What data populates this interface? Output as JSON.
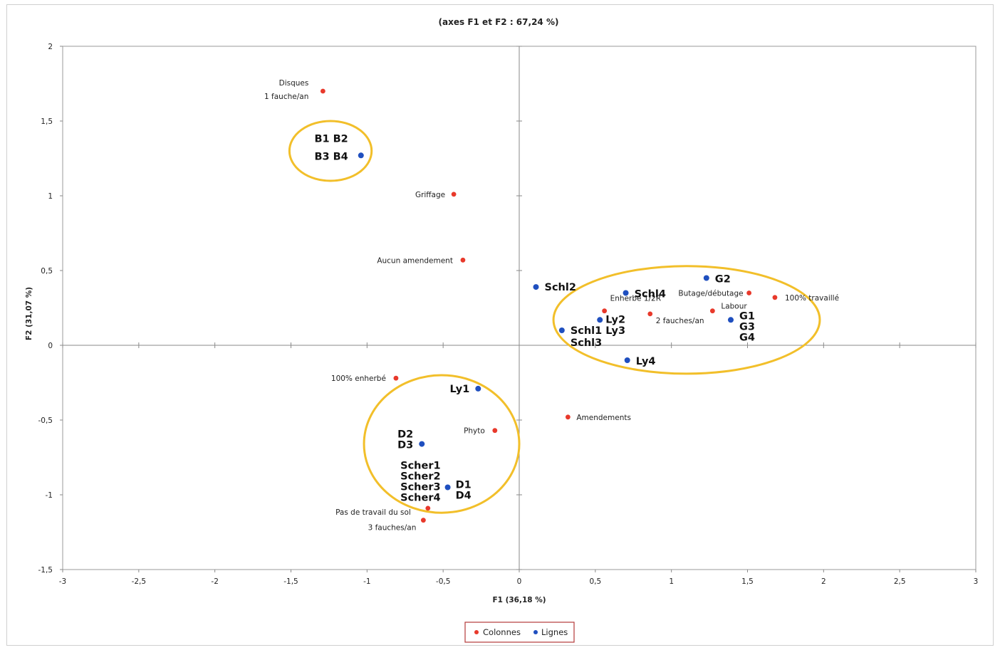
{
  "chart_data": {
    "type": "scatter",
    "title": "(axes F1 et F2 : 67,24 %)",
    "xlabel": "F1 (36,18 %)",
    "ylabel": "F2 (31,07 %)",
    "xlim": [
      -3,
      3
    ],
    "ylim": [
      -1.5,
      2
    ],
    "x_ticks": [
      "-3",
      "-2,5",
      "-2",
      "-1,5",
      "-1",
      "-0,5",
      "0",
      "0,5",
      "1",
      "1,5",
      "2",
      "2,5",
      "3"
    ],
    "y_ticks": [
      "-1,5",
      "-1",
      "-0,5",
      "0",
      "0,5",
      "1",
      "1,5",
      "2"
    ],
    "grid": false,
    "legend_position": "bottom",
    "series": [
      {
        "name": "Colonnes",
        "color": "#e8392b",
        "points": [
          {
            "x": -1.29,
            "y": 1.7,
            "lines": [
              "Disques",
              "1 fauche/an"
            ]
          },
          {
            "x": -0.43,
            "y": 1.01,
            "lines": [
              "Griffage"
            ]
          },
          {
            "x": -0.37,
            "y": 0.57,
            "lines": [
              "Aucun amendement"
            ]
          },
          {
            "x": -0.81,
            "y": -0.22,
            "lines": [
              "100% enherbé"
            ]
          },
          {
            "x": -0.16,
            "y": -0.57,
            "lines": [
              "Phyto"
            ]
          },
          {
            "x": 0.32,
            "y": -0.48,
            "lines": [
              "Amendements"
            ]
          },
          {
            "x": -0.6,
            "y": -1.09,
            "lines": [
              "Pas de travail du sol"
            ]
          },
          {
            "x": -0.63,
            "y": -1.17,
            "lines": [
              "3 fauches/an"
            ]
          },
          {
            "x": 0.56,
            "y": 0.23,
            "lines": [
              "Enherbé 1/2R"
            ]
          },
          {
            "x": 0.86,
            "y": 0.21,
            "lines": [
              "2 fauches/an"
            ]
          },
          {
            "x": 1.27,
            "y": 0.23,
            "lines": [
              "Labour"
            ]
          },
          {
            "x": 1.51,
            "y": 0.35,
            "lines": [
              "Butage/débutage"
            ]
          },
          {
            "x": 1.68,
            "y": 0.32,
            "lines": [
              "100% travaillé"
            ]
          }
        ]
      },
      {
        "name": "Lignes",
        "color": "#1f4fbf",
        "points": [
          {
            "x": -1.04,
            "y": 1.27,
            "lines": [
              "B1  B2",
              "B3  B4"
            ]
          },
          {
            "x": 0.11,
            "y": 0.39,
            "lines": [
              "Schl2"
            ]
          },
          {
            "x": 0.7,
            "y": 0.35,
            "lines": [
              "Schl4"
            ]
          },
          {
            "x": 1.23,
            "y": 0.45,
            "lines": [
              "G2"
            ]
          },
          {
            "x": 0.53,
            "y": 0.17,
            "lines": [
              "Ly2"
            ]
          },
          {
            "x": 0.28,
            "y": 0.1,
            "lines": [
              "Schl1 Ly3",
              "Schl3"
            ]
          },
          {
            "x": 1.39,
            "y": 0.17,
            "lines": [
              "G1",
              "G3",
              "G4"
            ]
          },
          {
            "x": 0.71,
            "y": -0.1,
            "lines": [
              "Ly4"
            ]
          },
          {
            "x": -0.27,
            "y": -0.29,
            "lines": [
              "Ly1"
            ]
          },
          {
            "x": -0.64,
            "y": -0.66,
            "lines": [
              "D2",
              "D3"
            ]
          },
          {
            "x": -0.47,
            "y": -0.95,
            "lines": [
              "Scher1",
              "Scher2",
              "Scher3",
              "Scher4"
            ]
          },
          {
            "x": -0.47,
            "y": -0.95,
            "lines": [
              "D1",
              "D4"
            ]
          }
        ]
      }
    ],
    "groups": [
      {
        "cx": -1.24,
        "cy": 1.3,
        "rx": 0.54,
        "ry": 0.2
      },
      {
        "cx": 1.1,
        "cy": 0.17,
        "rx": 1.75,
        "ry": 0.36
      },
      {
        "cx": -0.51,
        "cy": -0.66,
        "rx": 1.02,
        "ry": 0.46
      }
    ],
    "group_color": "#f2bf2a"
  }
}
